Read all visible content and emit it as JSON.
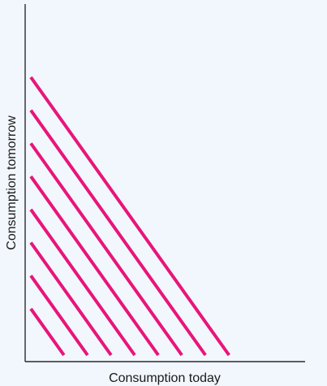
{
  "figure": {
    "x_axis_label": "Consumption today",
    "y_axis_label": "Consumption tomorrow",
    "line_color": "#e8157a",
    "axis_color": "#2b2b2b",
    "background_color": "#f1f7fd",
    "line_style": "parallel straight lines sloping downward (perfect substitutes indifference map)",
    "line_count": 8
  }
}
